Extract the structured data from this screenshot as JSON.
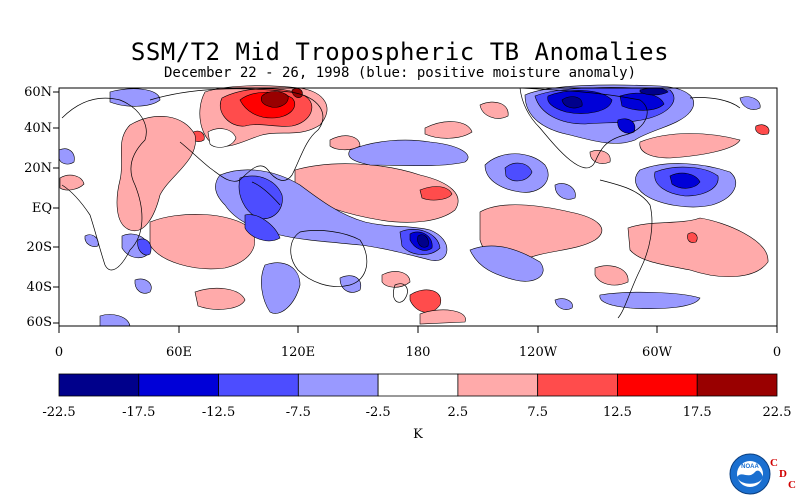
{
  "title": "SSM/T2 Mid Tropospheric TB Anomalies",
  "subtitle": "December 22 - 26, 1998 (blue: positive moisture anomaly)",
  "lat_labels": [
    "60N",
    "40N",
    "20N",
    "EQ",
    "20S",
    "40S",
    "60S"
  ],
  "lon_labels": [
    "0",
    "60E",
    "120E",
    "180",
    "120W",
    "60W",
    "0"
  ],
  "colorbar": {
    "unit": "K",
    "ticks": [
      "-22.5",
      "-17.5",
      "-12.5",
      "-7.5",
      "-2.5",
      "2.5",
      "7.5",
      "12.5",
      "17.5",
      "22.5"
    ],
    "colors": [
      "#00008b",
      "#0000d8",
      "#4d4dff",
      "#9999ff",
      "#ffffff",
      "#ffaaaa",
      "#ff4c4c",
      "#ff0000",
      "#990000"
    ]
  },
  "logo": {
    "agency": "NOAA",
    "letters": [
      "C",
      "D",
      "C"
    ]
  },
  "colors": {
    "blue_light": "#9999ff",
    "blue_mid": "#4d4dff",
    "blue_dark": "#0000d8",
    "blue_darkest": "#00008b",
    "red_light": "#ffaaaa",
    "red_mid": "#ff4c4c",
    "red_strong": "#ff0000",
    "red_darkest": "#990000"
  }
}
